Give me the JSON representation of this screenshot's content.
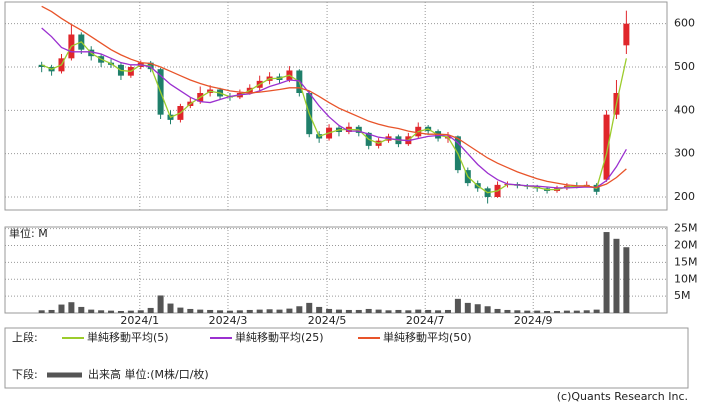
{
  "chart_data": [
    {
      "type": "candlestick",
      "x": [
        0,
        1,
        2,
        3,
        4,
        5,
        6,
        7,
        8,
        9,
        10,
        11,
        12,
        13,
        14,
        15,
        16,
        17,
        18,
        19,
        20,
        21,
        22,
        23,
        24,
        25,
        26,
        27,
        28,
        29,
        30,
        31,
        32,
        33,
        34,
        35,
        36,
        37,
        38,
        39,
        40,
        41,
        42,
        43,
        44,
        45,
        46,
        47,
        48,
        49,
        50,
        51,
        52,
        53,
        54,
        55,
        56,
        57,
        58,
        59
      ],
      "open": [
        505,
        500,
        490,
        520,
        575,
        540,
        525,
        510,
        505,
        480,
        500,
        510,
        495,
        390,
        378,
        410,
        420,
        440,
        448,
        432,
        430,
        440,
        452,
        468,
        478,
        470,
        492,
        440,
        345,
        335,
        360,
        350,
        362,
        348,
        318,
        330,
        340,
        322,
        340,
        362,
        352,
        335,
        340,
        262,
        232,
        220,
        200,
        228,
        230,
        226,
        224,
        220,
        214,
        220,
        226,
        225,
        228,
        240,
        390,
        550
      ],
      "high": [
        512,
        505,
        530,
        598,
        580,
        548,
        530,
        518,
        510,
        505,
        515,
        514,
        498,
        400,
        415,
        430,
        455,
        458,
        452,
        440,
        448,
        460,
        480,
        488,
        485,
        502,
        495,
        445,
        352,
        368,
        365,
        372,
        366,
        350,
        336,
        346,
        344,
        348,
        372,
        366,
        356,
        350,
        342,
        268,
        238,
        224,
        236,
        236,
        234,
        230,
        228,
        224,
        226,
        232,
        234,
        236,
        232,
        400,
        470,
        630
      ],
      "low": [
        488,
        480,
        485,
        515,
        530,
        515,
        500,
        498,
        470,
        475,
        495,
        488,
        380,
        368,
        372,
        405,
        415,
        432,
        425,
        422,
        426,
        436,
        445,
        460,
        462,
        465,
        432,
        338,
        325,
        330,
        340,
        345,
        340,
        310,
        312,
        325,
        315,
        318,
        336,
        345,
        328,
        325,
        255,
        225,
        212,
        185,
        198,
        222,
        220,
        218,
        212,
        208,
        210,
        216,
        220,
        222,
        205,
        235,
        380,
        530
      ],
      "close": [
        500,
        490,
        520,
        575,
        540,
        525,
        510,
        505,
        480,
        500,
        510,
        495,
        390,
        378,
        410,
        420,
        440,
        448,
        432,
        430,
        440,
        452,
        468,
        478,
        470,
        492,
        440,
        345,
        335,
        360,
        350,
        362,
        348,
        318,
        330,
        340,
        322,
        340,
        362,
        352,
        335,
        340,
        262,
        232,
        220,
        200,
        228,
        230,
        226,
        224,
        220,
        214,
        220,
        226,
        225,
        228,
        212,
        390,
        440,
        600
      ],
      "up_color": "#e0262b",
      "down_color": "#1f7f6a",
      "series": [
        {
          "name": "単純移動平均(5)",
          "color": "#9ccc2c",
          "values": [
            505,
            495,
            505,
            548,
            558,
            532,
            518,
            508,
            492,
            490,
            505,
            502,
            442,
            384,
            394,
            415,
            430,
            444,
            440,
            431,
            435,
            446,
            460,
            473,
            474,
            481,
            466,
            392,
            340,
            348,
            355,
            356,
            355,
            333,
            324,
            335,
            331,
            331,
            351,
            357,
            343,
            338,
            300,
            247,
            226,
            210,
            214,
            229,
            228,
            225,
            222,
            217,
            217,
            223,
            225,
            226,
            220,
            300,
            415,
            520
          ]
        },
        {
          "name": "単純移動平均(25)",
          "color": "#9b30d0",
          "values": [
            590,
            570,
            545,
            535,
            535,
            535,
            530,
            520,
            510,
            505,
            505,
            500,
            480,
            460,
            445,
            430,
            420,
            418,
            425,
            432,
            436,
            438,
            445,
            455,
            462,
            470,
            468,
            440,
            410,
            385,
            365,
            352,
            352,
            345,
            338,
            335,
            332,
            330,
            335,
            340,
            342,
            343,
            325,
            300,
            275,
            255,
            240,
            230,
            228,
            226,
            225,
            223,
            221,
            221,
            222,
            223,
            222,
            238,
            270,
            310
          ]
        },
        {
          "name": "単純移動平均(50)",
          "color": "#e8542a",
          "values": [
            640,
            628,
            612,
            598,
            585,
            570,
            555,
            540,
            528,
            518,
            510,
            508,
            500,
            490,
            480,
            470,
            462,
            455,
            450,
            445,
            442,
            440,
            442,
            445,
            448,
            452,
            452,
            445,
            432,
            418,
            405,
            395,
            385,
            375,
            368,
            362,
            358,
            352,
            348,
            345,
            345,
            344,
            335,
            320,
            305,
            290,
            278,
            268,
            258,
            250,
            242,
            236,
            232,
            228,
            226,
            225,
            222,
            230,
            245,
            265
          ]
        }
      ],
      "xlim": [
        -3.7,
        63.1
      ],
      "ylim": [
        170,
        650
      ],
      "yticks": [
        200,
        300,
        400,
        500,
        600
      ],
      "grid": true,
      "legend_label": "上段:"
    },
    {
      "type": "bar",
      "x": [
        0,
        1,
        2,
        3,
        4,
        5,
        6,
        7,
        8,
        9,
        10,
        11,
        12,
        13,
        14,
        15,
        16,
        17,
        18,
        19,
        20,
        21,
        22,
        23,
        24,
        25,
        26,
        27,
        28,
        29,
        30,
        31,
        32,
        33,
        34,
        35,
        36,
        37,
        38,
        39,
        40,
        41,
        42,
        43,
        44,
        45,
        46,
        47,
        48,
        49,
        50,
        51,
        52,
        53,
        54,
        55,
        56,
        57,
        58,
        59
      ],
      "values": [
        0.8,
        0.9,
        2.5,
        3.2,
        1.8,
        1.0,
        0.8,
        0.7,
        0.6,
        0.7,
        0.8,
        1.5,
        5.2,
        2.8,
        1.6,
        1.2,
        1.0,
        0.9,
        0.8,
        0.7,
        0.8,
        0.9,
        1.0,
        1.1,
        1.0,
        1.3,
        2.0,
        3.0,
        1.8,
        1.2,
        1.0,
        0.9,
        0.9,
        1.2,
        1.0,
        0.8,
        0.9,
        0.8,
        1.0,
        0.9,
        0.8,
        0.9,
        4.2,
        3.0,
        2.6,
        2.0,
        1.2,
        0.9,
        0.8,
        0.7,
        0.7,
        0.6,
        0.6,
        0.7,
        0.7,
        0.8,
        1.0,
        24.0,
        22.0,
        19.5
      ],
      "name": "出来高 単位:(M株/口/枚)",
      "color": "#555555",
      "unit_label": "単位: M",
      "xlim": [
        -3.7,
        63.1
      ],
      "ylim": [
        0,
        25.5
      ],
      "yticks": [
        {
          "value": 5,
          "label": "5M"
        },
        {
          "value": 10,
          "label": "10M"
        },
        {
          "value": 15,
          "label": "15M"
        },
        {
          "value": 20,
          "label": "20M"
        },
        {
          "value": 25,
          "label": "25M"
        }
      ],
      "xticks": [
        {
          "value": 9.9,
          "label": "2024/1"
        },
        {
          "value": 18.8,
          "label": "2024/3"
        },
        {
          "value": 28.8,
          "label": "2024/5"
        },
        {
          "value": 38.7,
          "label": "2024/7"
        },
        {
          "value": 49.6,
          "label": "2024/9"
        }
      ],
      "grid": true,
      "legend_label": "下段:"
    }
  ],
  "footer": "(c)Quants Research Inc."
}
